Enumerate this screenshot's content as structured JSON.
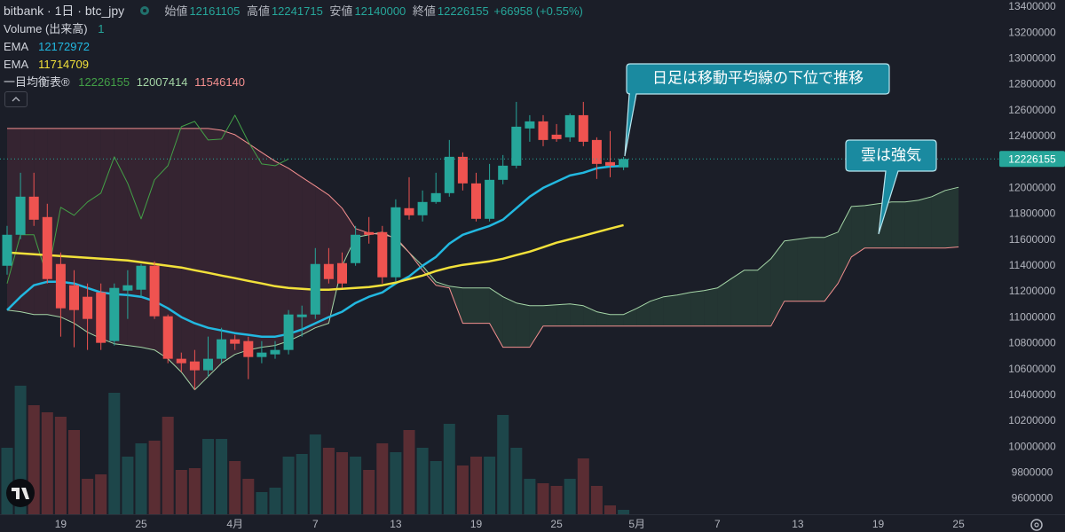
{
  "chart_data": {
    "type": "candlestick",
    "title": "bitbank · 1日 · btc_jpy",
    "ohlc_labels": [
      "始値",
      "高値",
      "安値",
      "終値"
    ],
    "change": "+66958 (+0.55%)",
    "categories": [
      null,
      null,
      null,
      null,
      "19",
      null,
      null,
      null,
      null,
      null,
      "25",
      null,
      null,
      null,
      null,
      null,
      null,
      "4月",
      null,
      null,
      null,
      null,
      null,
      "7",
      null,
      null,
      null,
      null,
      null,
      "13",
      null,
      null,
      null,
      null,
      null,
      "19",
      null,
      null,
      null,
      null,
      null,
      "25",
      null,
      null,
      null,
      null,
      null,
      "5月",
      null,
      null,
      null,
      null,
      null,
      "7",
      null,
      null,
      null,
      null,
      null,
      "13",
      null,
      null,
      null,
      null,
      null,
      "19",
      null,
      null,
      null,
      null,
      null,
      "25",
      null,
      null
    ],
    "open": [
      11400700,
      11640300,
      11934800,
      11777300,
      11414400,
      11250100,
      11161100,
      11195300,
      10818700,
      11209000,
      11215800,
      11400700,
      11010400,
      10681800,
      10661200,
      10592800,
      10681800,
      10832400,
      10818700,
      10695500,
      10716000,
      10750200,
      11003600,
      11024100,
      11414400,
      11421200,
      11421200,
      11660900,
      11660900,
      11311700,
      11845800,
      11791000,
      11893700,
      11962200,
      12242900,
      12037500,
      11763600,
      12064900,
      12174400,
      12462000,
      12516800,
      12414100,
      12393500,
      12564700,
      12373000,
      12201800,
      12161105,
      null,
      null,
      null,
      null,
      null,
      null,
      null,
      null,
      null,
      null,
      null,
      null,
      null,
      null,
      null,
      null,
      null,
      null,
      null,
      null,
      null,
      null,
      null,
      null,
      null,
      null,
      null
    ],
    "high": [
      11708800,
      12119600,
      12119600,
      11880000,
      11503400,
      11366500,
      11263800,
      11263800,
      11263800,
      11366500,
      11414400,
      11434900,
      11024100,
      10729700,
      10750200,
      10852900,
      10921400,
      10866600,
      10852900,
      10818700,
      10818700,
      11058400,
      11092600,
      11537600,
      11537600,
      11503400,
      11708800,
      11777300,
      11708800,
      11914200,
      12085400,
      11982700,
      12119600,
      12373000,
      12277100,
      12119600,
      12188100,
      12256600,
      12667400,
      12564700,
      12564700,
      12496200,
      12578400,
      12667400,
      12393500,
      12441400,
      12241715,
      null,
      null,
      null,
      null,
      null,
      null,
      null,
      null,
      null,
      null,
      null,
      null,
      null,
      null,
      null,
      null,
      null,
      null,
      null,
      null,
      null,
      null,
      null,
      null,
      null,
      null,
      null
    ],
    "low": [
      11332200,
      11606100,
      11708800,
      11263800,
      10852900,
      10770800,
      10750200,
      10750200,
      10784500,
      10989900,
      11161100,
      10989900,
      10647500,
      10579100,
      10442100,
      10544300,
      10647500,
      10750200,
      10524300,
      10647500,
      10681800,
      10716000,
      10852900,
      10989900,
      11263800,
      11229500,
      11400700,
      11571900,
      11263800,
      11277500,
      11756700,
      11743100,
      11880000,
      11934800,
      11982700,
      11743100,
      11743100,
      12030600,
      12153900,
      12359300,
      12325000,
      12359300,
      12359300,
      12325000,
      12071700,
      12085400,
      12140000,
      null,
      null,
      null,
      null,
      null,
      null,
      null,
      null,
      null,
      null,
      null,
      null,
      null,
      null,
      null,
      null,
      null,
      null,
      null,
      null,
      null,
      null,
      null,
      null,
      null,
      null,
      null
    ],
    "close": [
      11640300,
      11934800,
      11756700,
      11298000,
      11072000,
      11058400,
      10989900,
      10805000,
      11229500,
      11250100,
      11400700,
      11010400,
      10681800,
      10647500,
      10592800,
      10681800,
      10832400,
      10798200,
      10695500,
      10729700,
      10750200,
      11024100,
      11024100,
      11414400,
      11298000,
      11263800,
      11640300,
      11640300,
      11311700,
      11852600,
      11791000,
      11893700,
      11962200,
      12242900,
      12037500,
      11763600,
      12064900,
      12174400,
      12475700,
      12516800,
      12373000,
      12379800,
      12564700,
      12359300,
      12188100,
      12174400,
      12226155,
      null,
      null,
      null,
      null,
      null,
      null,
      null,
      null,
      null,
      null,
      null,
      null,
      null,
      null,
      null,
      null,
      null,
      null,
      null,
      null,
      null,
      null,
      null,
      null,
      null,
      null,
      null
    ],
    "up_color": "#26a69a",
    "down_color": "#ef5350",
    "volume": {
      "name": "Volume (出来高)",
      "legend_value": 1,
      "values": [
        75,
        145,
        123,
        115,
        110,
        95,
        40,
        45,
        137,
        65,
        80,
        83,
        110,
        50,
        52,
        85,
        85,
        60,
        40,
        25,
        30,
        65,
        68,
        90,
        75,
        70,
        65,
        50,
        80,
        70,
        95,
        75,
        60,
        102,
        55,
        65,
        65,
        112,
        75,
        40,
        35,
        32,
        40,
        63,
        32,
        10,
        5,
        null,
        null,
        null,
        null,
        null,
        null,
        null,
        null,
        null,
        null,
        null,
        null,
        null,
        null,
        null,
        null,
        null,
        null,
        null,
        null,
        null,
        null,
        null,
        null,
        null,
        null,
        null
      ]
    },
    "series": [
      {
        "name": "EMA",
        "color": "#22b8e0",
        "values": [
          11058000,
          11161000,
          11250000,
          11277000,
          11277000,
          11264000,
          11229000,
          11195000,
          11182000,
          11175000,
          11161000,
          11127000,
          11072000,
          11004000,
          10956000,
          10921000,
          10901000,
          10880000,
          10867000,
          10853000,
          10853000,
          10873000,
          10908000,
          10956000,
          11004000,
          11045000,
          11113000,
          11161000,
          11195000,
          11264000,
          11319000,
          11401000,
          11469000,
          11572000,
          11640000,
          11675000,
          11709000,
          11757000,
          11846000,
          11935000,
          12003000,
          12051000,
          12099000,
          12120000,
          12154000,
          12168000,
          12172972,
          null,
          null,
          null,
          null,
          null,
          null,
          null,
          null,
          null,
          null,
          null,
          null,
          null,
          null,
          null,
          null,
          null,
          null,
          null,
          null,
          null,
          null,
          null,
          null,
          null,
          null,
          null
        ]
      },
      {
        "name": "EMA",
        "color": "#f2e13a",
        "values": [
          11503000,
          11497000,
          11490000,
          11483000,
          11476000,
          11469000,
          11462000,
          11455000,
          11449000,
          11442000,
          11428000,
          11414000,
          11401000,
          11387000,
          11366000,
          11346000,
          11325000,
          11305000,
          11284000,
          11264000,
          11243000,
          11230000,
          11223000,
          11216000,
          11216000,
          11223000,
          11230000,
          11236000,
          11250000,
          11271000,
          11298000,
          11325000,
          11360000,
          11387000,
          11408000,
          11421000,
          11435000,
          11455000,
          11483000,
          11510000,
          11544000,
          11579000,
          11606000,
          11633000,
          11661000,
          11688000,
          11714709,
          null,
          null,
          null,
          null,
          null,
          null,
          null,
          null,
          null,
          null,
          null,
          null,
          null,
          null,
          null,
          null,
          null,
          null,
          null,
          null,
          null,
          null,
          null,
          null,
          null,
          null,
          null
        ]
      }
    ],
    "ichimoku": {
      "name": "一目均衡表®",
      "bull_cloud_color": "#2b4a3c",
      "bear_cloud_color": "#4a2a38",
      "lagging": {
        "color": "#43a047",
        "values": [
          11263800,
          11640300,
          11640300,
          11311700,
          11852600,
          11791000,
          11893700,
          11962200,
          12242900,
          12037500,
          11763600,
          12064900,
          12174400,
          12475700,
          12516800,
          12373000,
          12379800,
          12564700,
          12359300,
          12188100,
          12174400,
          12226155,
          null,
          null,
          null,
          null,
          null,
          null,
          null,
          null,
          null,
          null,
          null,
          null,
          null,
          null,
          null,
          null,
          null,
          null,
          null,
          null,
          null,
          null,
          null,
          null,
          null,
          null,
          null,
          null,
          null,
          null,
          null,
          null,
          null,
          null,
          null,
          null,
          null,
          null,
          null,
          null,
          null,
          null,
          null,
          null,
          null,
          null,
          null,
          null,
          null,
          null,
          null,
          null
        ]
      },
      "span_a": {
        "color": "#a5d6a7",
        "values": [
          11058000,
          11045000,
          11024000,
          11024000,
          11004000,
          10956000,
          10887000,
          10839000,
          10798000,
          10785000,
          10771000,
          10750000,
          10682000,
          10579000,
          10442000,
          10544000,
          10648000,
          10716000,
          10750000,
          10771000,
          10785000,
          10819000,
          10867000,
          10921000,
          10956000,
          11401000,
          11620000,
          11640000,
          11661000,
          11606000,
          11503000,
          11401000,
          11277000,
          11243000,
          11229000,
          11229000,
          11229000,
          11161000,
          11113000,
          11092000,
          11092000,
          11099000,
          11106000,
          11092000,
          11045000,
          11024000,
          11024000,
          11072000,
          11127000,
          11161000,
          11175000,
          11195000,
          11209000,
          11229000,
          11298000,
          11366000,
          11366000,
          11455000,
          11592000,
          11606000,
          11620000,
          11620000,
          11661000,
          11859000,
          11866000,
          11880000,
          11894000,
          11894000,
          11907000,
          11935000,
          11983000,
          12007414,
          null,
          null
        ]
      },
      "span_b": {
        "color": "#f48f8f",
        "values": [
          12462000,
          12462000,
          12462000,
          12462000,
          12462000,
          12462000,
          12462000,
          12462000,
          12462000,
          12462000,
          12462000,
          12462000,
          12462000,
          12462000,
          12462000,
          12462000,
          12448000,
          12414000,
          12346000,
          12277000,
          12209000,
          12154000,
          12085000,
          12017000,
          11948000,
          11846000,
          11688000,
          11654000,
          11640000,
          11620000,
          11503000,
          11366000,
          11250000,
          11229000,
          10956000,
          10956000,
          10956000,
          10771000,
          10771000,
          10771000,
          10935000,
          10935000,
          10935000,
          10935000,
          10935000,
          10935000,
          10935000,
          10935000,
          10935000,
          10935000,
          10935000,
          10935000,
          10935000,
          10935000,
          10935000,
          10935000,
          10935000,
          10935000,
          11127000,
          11127000,
          11127000,
          11127000,
          11264000,
          11469000,
          11538000,
          11538000,
          11538000,
          11538000,
          11538000,
          11538000,
          11538000,
          11546140,
          null,
          null
        ]
      }
    },
    "annotations": [
      "日足は移動平均線の下位で推移",
      "雲は強気"
    ],
    "ylim": [
      9480000,
      13455000
    ],
    "yticks": [
      9600000,
      9800000,
      10000000,
      10200000,
      10400000,
      10600000,
      10800000,
      11000000,
      11200000,
      11400000,
      11600000,
      11800000,
      12000000,
      12200000,
      12400000,
      12600000,
      12800000,
      13000000,
      13200000,
      13400000
    ],
    "grid": false
  }
}
